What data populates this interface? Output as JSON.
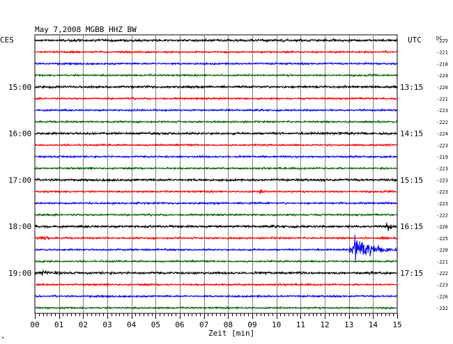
{
  "chart_data": {
    "type": "line",
    "title": "May 7,2008   MGBB HHZ BW",
    "left_axis_label": "CES",
    "right_axis_label": "UTC",
    "dc_label": "DC",
    "xlabel": "Zeit [min]",
    "x_ticks": [
      "00",
      "01",
      "02",
      "03",
      "04",
      "05",
      "06",
      "07",
      "08",
      "09",
      "10",
      "11",
      "12",
      "13",
      "14",
      "15"
    ],
    "xlim": [
      0,
      15
    ],
    "trace_colors": [
      "#000000",
      "#ff0000",
      "#0000ff",
      "#006400"
    ],
    "trace_count": 24,
    "left_hour_labels": [
      {
        "trace": 4,
        "text": "15:00"
      },
      {
        "trace": 8,
        "text": "16:00"
      },
      {
        "trace": 12,
        "text": "17:00"
      },
      {
        "trace": 16,
        "text": "18:00"
      },
      {
        "trace": 20,
        "text": "19:00"
      }
    ],
    "right_hour_labels": [
      {
        "trace": 4,
        "text": "13:15"
      },
      {
        "trace": 8,
        "text": "14:15"
      },
      {
        "trace": 12,
        "text": "15:15"
      },
      {
        "trace": 16,
        "text": "16:15"
      },
      {
        "trace": 20,
        "text": "17:15"
      }
    ],
    "dc_offsets": [
      "-225",
      "-221",
      "-218",
      "-224",
      "-220",
      "-221",
      "-223",
      "-222",
      "-224",
      "-223",
      "-219",
      "-223",
      "-223",
      "-223",
      "-223",
      "-222",
      "-226",
      "-225",
      "-220",
      "-221",
      "-222",
      "-223",
      "-226",
      "-232"
    ],
    "events": [
      {
        "trace": 13,
        "start_min": 9.3,
        "end_min": 9.5,
        "amp": 7
      },
      {
        "trace": 16,
        "start_min": 14.45,
        "end_min": 15.0,
        "amp": 8
      },
      {
        "trace": 17,
        "start_min": 0.0,
        "end_min": 1.8,
        "amp": 3
      },
      {
        "trace": 17,
        "start_min": 14.3,
        "end_min": 15.0,
        "amp": 3
      },
      {
        "trace": 18,
        "start_min": 13.0,
        "end_min": 15.0,
        "amp": 16
      },
      {
        "trace": 20,
        "start_min": 0.1,
        "end_min": 1.9,
        "amp": 4
      }
    ]
  },
  "footer_mark": "*"
}
